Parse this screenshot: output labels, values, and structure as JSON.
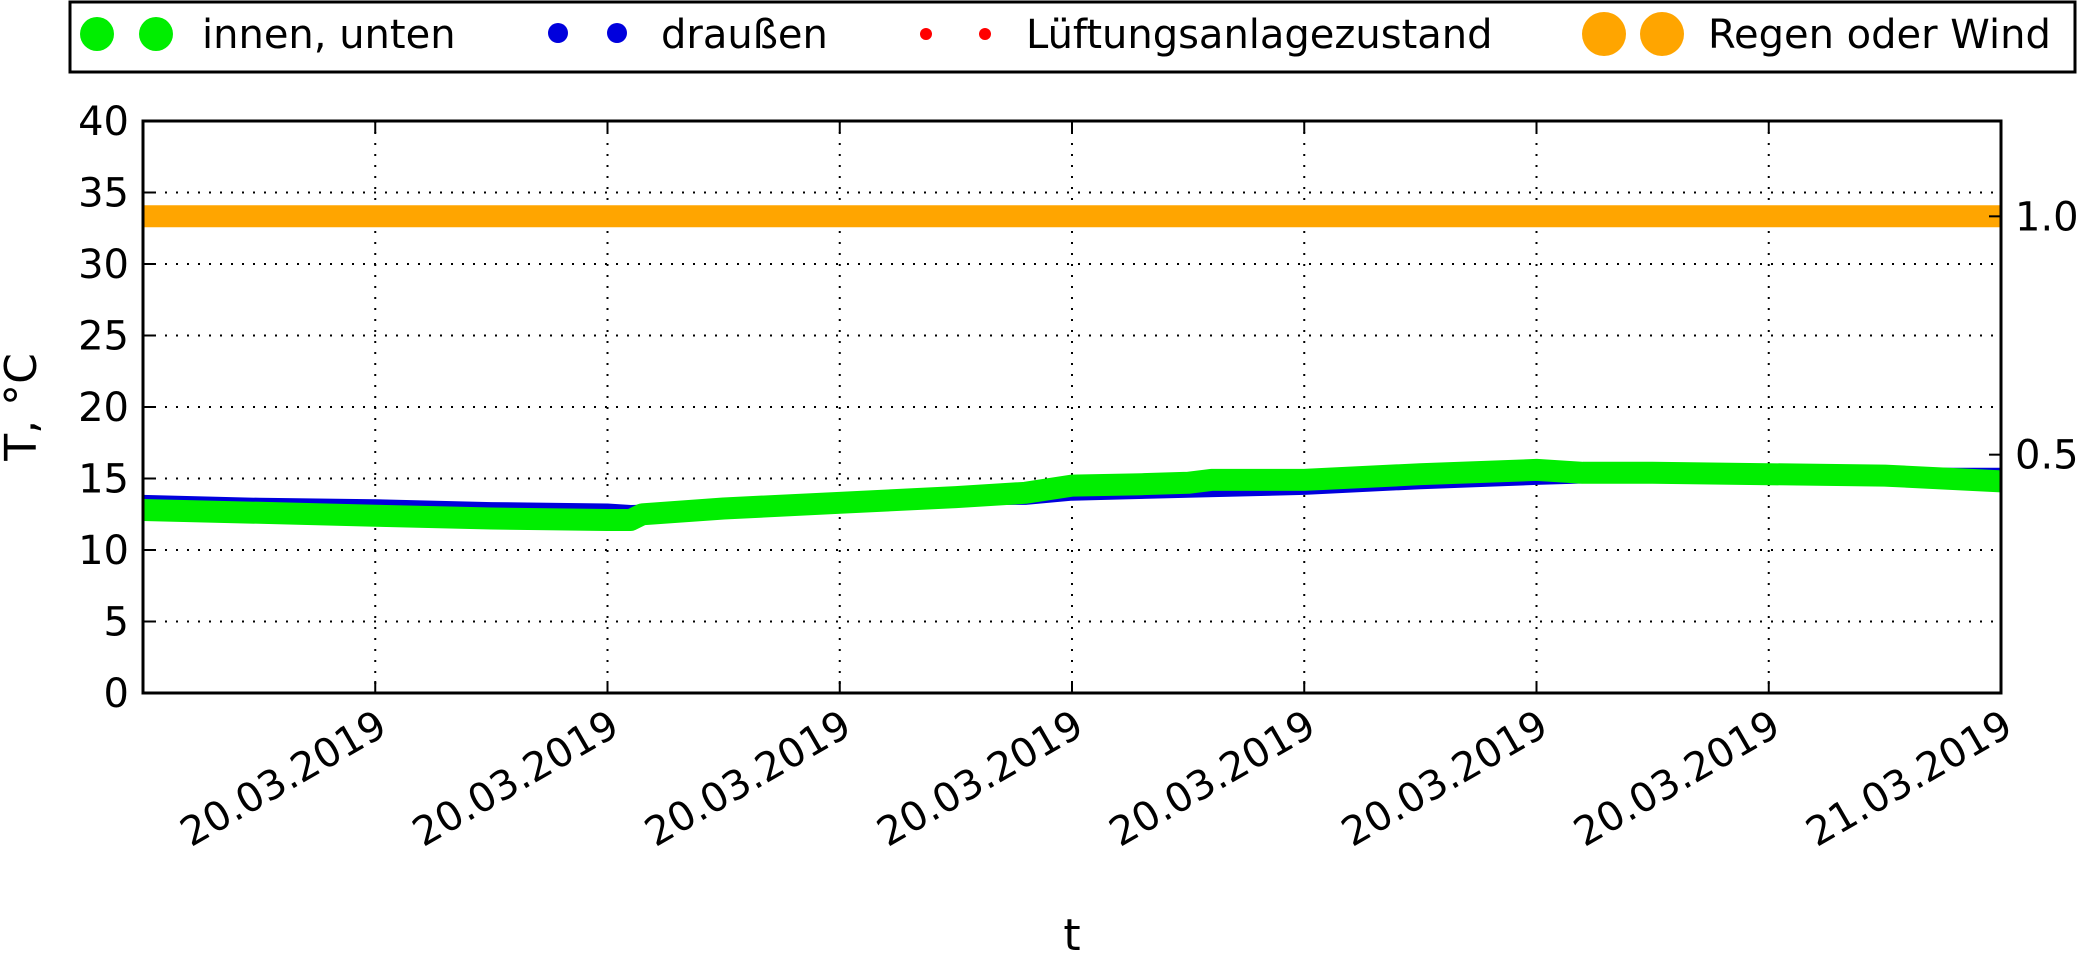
{
  "chart_data": {
    "type": "line",
    "xlabel": "t",
    "ylabel": "T, °C",
    "ylim": [
      0,
      40
    ],
    "y_ticks": [
      0,
      5,
      10,
      15,
      20,
      25,
      30,
      35,
      40
    ],
    "y2lim": [
      0.0,
      1.2
    ],
    "y2_ticks": [
      0.5,
      1.0
    ],
    "y2_tick_labels": [
      "0.5",
      "1.0"
    ],
    "x_ticks": [
      0,
      1,
      2,
      3,
      4,
      5,
      6,
      7,
      8
    ],
    "x_tick_labels": [
      "",
      "20.03.2019",
      "20.03.2019",
      "20.03.2019",
      "20.03.2019",
      "20.03.2019",
      "20.03.2019",
      "20.03.2019",
      "21.03.2019"
    ],
    "grid": true,
    "legend_position": "top",
    "series": [
      {
        "name": "draußen",
        "color": "#0000dd",
        "marker": "dot-small",
        "x": [
          0,
          0.5,
          1,
          1.5,
          2,
          2.1,
          2.5,
          3,
          3.5,
          3.8,
          4,
          4.5,
          5,
          5.5,
          6,
          6.2,
          6.5,
          7,
          7.5,
          8
        ],
        "values": [
          13.5,
          13.3,
          13.2,
          13.0,
          12.9,
          12.8,
          13.0,
          13.3,
          13.5,
          13.5,
          13.8,
          14.0,
          14.2,
          14.6,
          14.9,
          15.0,
          15.2,
          15.3,
          15.4,
          15.4
        ]
      },
      {
        "name": "innen, unten",
        "color": "#00ee00",
        "marker": "dot-large",
        "x": [
          0,
          0.5,
          1,
          1.5,
          2,
          2.1,
          2.15,
          2.5,
          3,
          3.5,
          3.8,
          4,
          4.3,
          4.5,
          4.6,
          5,
          5.5,
          6,
          6.2,
          6.5,
          7,
          7.5,
          8
        ],
        "values": [
          12.8,
          12.6,
          12.4,
          12.2,
          12.1,
          12.1,
          12.5,
          12.9,
          13.3,
          13.7,
          14.0,
          14.5,
          14.6,
          14.7,
          14.9,
          14.9,
          15.3,
          15.6,
          15.4,
          15.4,
          15.3,
          15.2,
          14.8
        ]
      },
      {
        "name": "Lüftungsanlagezustand",
        "color": "#ff0000",
        "marker": "dot-tiny",
        "axis": "right",
        "x": [],
        "values": []
      },
      {
        "name": "Regen oder Wind",
        "color": "#ffa500",
        "marker": "dot-huge",
        "axis": "right",
        "x": [
          0,
          8
        ],
        "values": [
          1.0,
          1.0
        ]
      }
    ]
  }
}
